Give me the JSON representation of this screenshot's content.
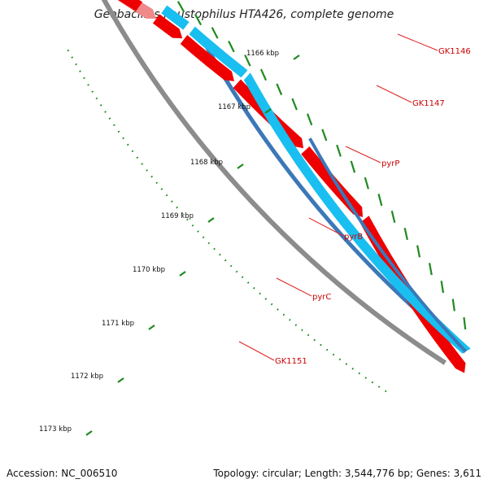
{
  "title": "Geobacillus kaustophilus HTA426, complete genome",
  "footer": {
    "accession": "Accession: NC_006510",
    "summary": "Topology: circular; Length: 3,544,776 bp; Genes: 3,611"
  },
  "colors": {
    "backbone": "#8c8c8c",
    "forward_strand": "#ee0000",
    "reverse_strand": "#18bff0",
    "dark_track": "#3c78b8",
    "pale_gene": "#f08a8a",
    "green_gene": "#a8e070",
    "marks": "#1f8a1f",
    "label_line": "#dd2222",
    "label_text": "#cc0000"
  },
  "scale_ticks": [
    "1166 kbp",
    "1167 kbp",
    "1168 kbp",
    "1169 kbp",
    "1170 kbp",
    "1171 kbp",
    "1172 kbp",
    "1173 kbp"
  ],
  "gene_labels": [
    "GK1146",
    "GK1147",
    "pyrP",
    "pyrB",
    "pyrC",
    "GK1151"
  ]
}
